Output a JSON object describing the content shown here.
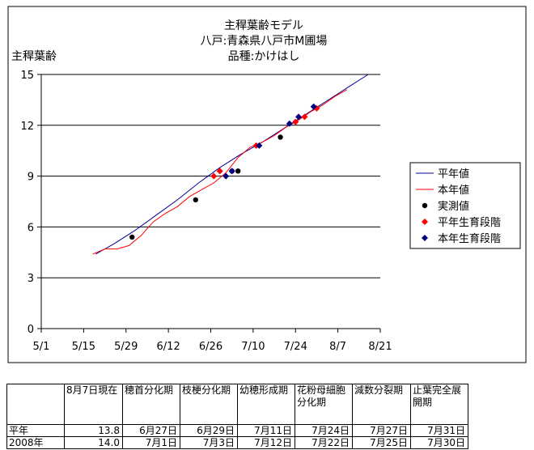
{
  "chart_data": {
    "type": "line",
    "title": [
      "主稈葉齢モデル",
      "八戸:青森県八戸市M圃場",
      "品種:かけはし"
    ],
    "ylabel": "主稈葉齢",
    "xlabel": "",
    "ylim": [
      0,
      15
    ],
    "yticks": [
      0,
      3,
      6,
      9,
      12,
      15
    ],
    "ytick_labels": [
      "0",
      "3",
      "6",
      "9",
      "12",
      "15"
    ],
    "x_domain": [
      "5/1",
      "8/21"
    ],
    "xticks": [
      "5/1",
      "5/15",
      "5/29",
      "6/12",
      "6/26",
      "7/10",
      "7/24",
      "8/7",
      "8/21"
    ],
    "xtick_labels": [
      "5/1",
      "5/15",
      "5/29",
      "6/12",
      "6/26",
      "7/10",
      "7/24",
      "8/7",
      "8/21"
    ],
    "grid": "horizontal",
    "legend_position": "right",
    "series": [
      {
        "name": "平年値",
        "kind": "line",
        "color": "#000099",
        "x": [
          "5/19",
          "5/25",
          "6/1",
          "6/8",
          "6/15",
          "6/22",
          "6/29",
          "7/6",
          "7/13",
          "7/20",
          "7/27",
          "8/3",
          "8/10",
          "8/17"
        ],
        "y": [
          4.4,
          5.0,
          5.8,
          6.7,
          7.6,
          8.6,
          9.5,
          10.3,
          11.0,
          11.8,
          12.6,
          13.4,
          14.2,
          15.0
        ]
      },
      {
        "name": "本年値",
        "kind": "line",
        "color": "#ff0000",
        "x": [
          "5/18",
          "5/22",
          "5/26",
          "5/30",
          "6/3",
          "6/7",
          "6/11",
          "6/15",
          "6/19",
          "6/23",
          "6/27",
          "7/1",
          "7/5",
          "7/9",
          "7/13",
          "7/17",
          "7/21",
          "7/25",
          "7/29",
          "8/2",
          "8/6",
          "8/10"
        ],
        "y": [
          4.4,
          4.7,
          4.7,
          4.9,
          5.5,
          6.3,
          6.8,
          7.2,
          7.8,
          8.2,
          8.6,
          9.2,
          10.1,
          10.7,
          11.0,
          11.4,
          11.9,
          12.3,
          12.8,
          13.2,
          13.7,
          14.1
        ]
      },
      {
        "name": "実測値",
        "kind": "scatter",
        "marker": "circle",
        "color": "#000000",
        "x": [
          "5/31",
          "6/21",
          "7/3",
          "7/5",
          "7/19"
        ],
        "y": [
          5.4,
          7.6,
          9.3,
          9.3,
          11.3
        ]
      },
      {
        "name": "平年生育段階",
        "kind": "scatter",
        "marker": "diamond",
        "color": "#ff0000",
        "x": [
          "6/27",
          "6/29",
          "7/11",
          "7/24",
          "7/27",
          "7/31"
        ],
        "y": [
          9.0,
          9.3,
          10.8,
          12.2,
          12.5,
          13.0
        ]
      },
      {
        "name": "本年生育段階",
        "kind": "scatter",
        "marker": "diamond",
        "color": "#000080",
        "x": [
          "7/1",
          "7/3",
          "7/12",
          "7/22",
          "7/25",
          "7/30"
        ],
        "y": [
          9.0,
          9.3,
          10.8,
          12.1,
          12.5,
          13.1
        ]
      }
    ],
    "table": {
      "headers": [
        "",
        "8月7日現在",
        "穂首分化期",
        "枝梗分化期",
        "幼穂形成期",
        "花粉母細胞分化期",
        "減数分裂期",
        "止葉完全展開期"
      ],
      "rows": [
        [
          "平年",
          "13.8",
          "6月27日",
          "6月29日",
          "7月11日",
          "7月24日",
          "7月27日",
          "7月31日"
        ],
        [
          "2008年",
          "14.0",
          "7月1日",
          "7月3日",
          "7月12日",
          "7月22日",
          "7月25日",
          "7月30日"
        ]
      ]
    }
  }
}
